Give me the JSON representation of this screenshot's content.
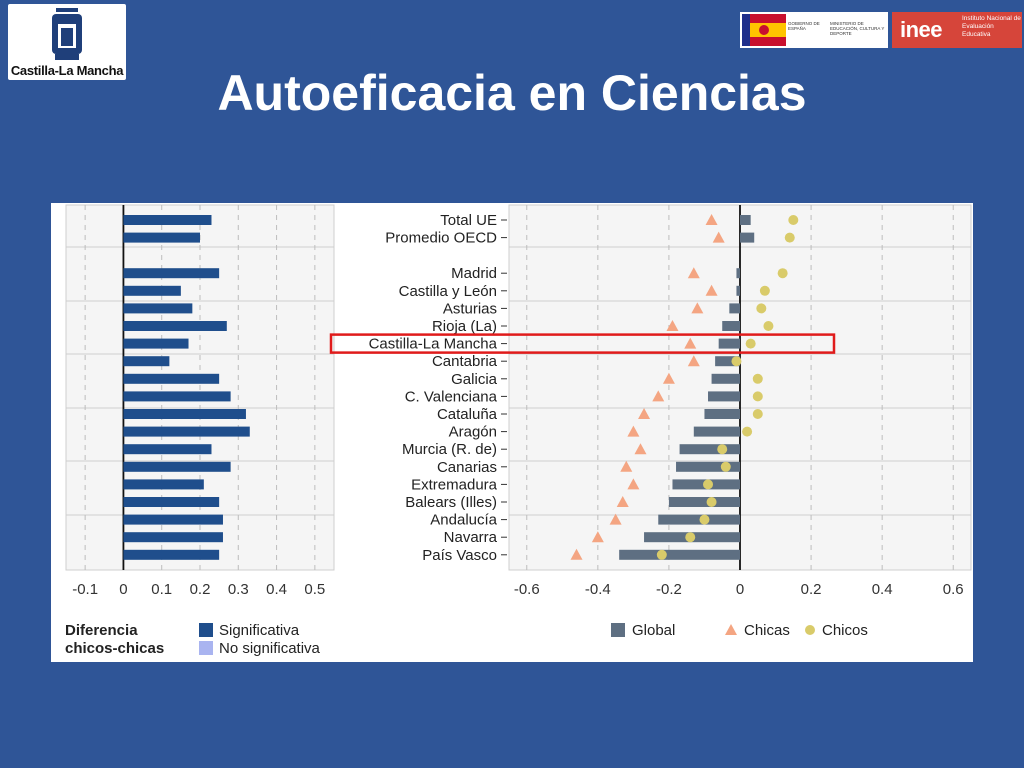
{
  "slide": {
    "title": "Autoeficacia en Ciencias",
    "background_color": "#2f5597"
  },
  "logos": {
    "left_text": "Castilla-La Mancha",
    "gobierno_text": "GOBIERNO DE ESPAÑA",
    "ministerio_text": "MINISTERIO DE EDUCACIÓN, CULTURA Y DEPORTE",
    "inee_word": "inee",
    "inee_name": "Instituto Nacional de Evaluación Educativa"
  },
  "chart_data": [
    {
      "type": "bar",
      "orientation": "horizontal",
      "categories": [
        "Total UE",
        "Promedio OECD",
        "Madrid",
        "Castilla y León",
        "Asturias",
        "Rioja (La)",
        "Castilla-La Mancha",
        "Cantabria",
        "Galicia",
        "C. Valenciana",
        "Cataluña",
        "Aragón",
        "Murcia (R. de)",
        "Canarias",
        "Extremadura",
        "Balears (Illes)",
        "Andalucía",
        "Navarra",
        "País Vasco"
      ],
      "values": [
        0.23,
        0.2,
        0.25,
        0.15,
        0.18,
        0.27,
        0.17,
        0.12,
        0.25,
        0.28,
        0.32,
        0.33,
        0.23,
        0.28,
        0.21,
        0.25,
        0.26,
        0.26,
        0.25
      ],
      "significant": [
        true,
        true,
        true,
        true,
        true,
        true,
        true,
        true,
        true,
        true,
        true,
        true,
        true,
        true,
        true,
        true,
        true,
        true,
        true
      ],
      "xlim": [
        -0.15,
        0.55
      ],
      "xticks": [
        "-0.1",
        "0",
        "0.1",
        "0.2",
        "0.3",
        "0.4",
        "0.5"
      ],
      "legend_title": "Diferencia chicos-chicas",
      "legend": [
        {
          "label": "Significativa",
          "color": "#1f4e8c"
        },
        {
          "label": "No significativa",
          "color": "#a9b4f0"
        }
      ]
    },
    {
      "type": "bar+scatter",
      "orientation": "horizontal",
      "categories": [
        "Total UE",
        "Promedio OECD",
        "Madrid",
        "Castilla y León",
        "Asturias",
        "Rioja (La)",
        "Castilla-La Mancha",
        "Cantabria",
        "Galicia",
        "C. Valenciana",
        "Cataluña",
        "Aragón",
        "Murcia (R. de)",
        "Canarias",
        "Extremadura",
        "Balears (Illes)",
        "Andalucía",
        "Navarra",
        "País Vasco"
      ],
      "highlighted": "Castilla-La Mancha",
      "series": [
        {
          "name": "Global",
          "marker": "bar",
          "color": "#5e6f82",
          "values": [
            0.03,
            0.04,
            -0.01,
            -0.01,
            -0.03,
            -0.05,
            -0.06,
            -0.07,
            -0.08,
            -0.09,
            -0.1,
            -0.13,
            -0.17,
            -0.18,
            -0.19,
            -0.2,
            -0.23,
            -0.27,
            -0.34
          ]
        },
        {
          "name": "Chicas",
          "marker": "triangle",
          "color": "#f4a582",
          "values": [
            -0.08,
            -0.06,
            -0.13,
            -0.08,
            -0.12,
            -0.19,
            -0.14,
            -0.13,
            -0.2,
            -0.23,
            -0.27,
            -0.3,
            -0.28,
            -0.32,
            -0.3,
            -0.33,
            -0.35,
            -0.4,
            -0.46
          ]
        },
        {
          "name": "Chicos",
          "marker": "circle",
          "color": "#d9cb6a",
          "values": [
            0.15,
            0.14,
            0.12,
            0.07,
            0.06,
            0.08,
            0.03,
            -0.01,
            0.05,
            0.05,
            0.05,
            0.02,
            -0.05,
            -0.04,
            -0.09,
            -0.08,
            -0.1,
            -0.14,
            -0.22
          ]
        }
      ],
      "xlim": [
        -0.65,
        0.65
      ],
      "xticks": [
        "-0.6",
        "-0.4",
        "-0.2",
        "0",
        "0.2",
        "0.4",
        "0.6"
      ]
    }
  ]
}
